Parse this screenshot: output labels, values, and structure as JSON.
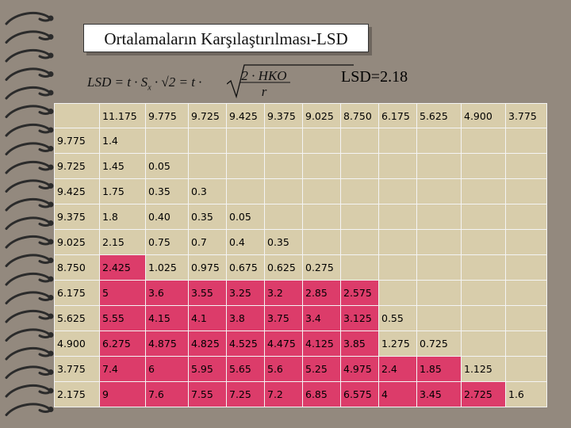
{
  "title": "Ortalamaların Karşılaştırılması-LSD",
  "lsd_label": "LSD=2.18",
  "formula": {
    "lhs": "LSD = t · S",
    "sub": "x",
    "lhs2": "· √2 = t ·",
    "numerator": "2 · HKO",
    "denominator": "r"
  },
  "table": {
    "column_headers": [
      "11.175",
      "9.775",
      "9.725",
      "9.425",
      "9.375",
      "9.025",
      "8.750",
      "6.175",
      "5.625",
      "4.900",
      "3.775"
    ],
    "rows": [
      {
        "label": "9.775",
        "values": [
          "1.4"
        ]
      },
      {
        "label": "9.725",
        "values": [
          "1.45",
          "0.05"
        ]
      },
      {
        "label": "9.425",
        "values": [
          "1.75",
          "0.35",
          "0.3"
        ]
      },
      {
        "label": "9.375",
        "values": [
          "1.8",
          "0.40",
          "0.35",
          "0.05"
        ]
      },
      {
        "label": "9.025",
        "values": [
          "2.15",
          "0.75",
          "0.7",
          "0.4",
          "0.35"
        ]
      },
      {
        "label": "8.750",
        "values": [
          "2.425",
          "1.025",
          "0.975",
          "0.675",
          "0.625",
          "0.275"
        ]
      },
      {
        "label": "6.175",
        "values": [
          "5",
          "3.6",
          "3.55",
          "3.25",
          "3.2",
          "2.85",
          "2.575"
        ]
      },
      {
        "label": "5.625",
        "values": [
          "5.55",
          "4.15",
          "4.1",
          "3.8",
          "3.75",
          "3.4",
          "3.125",
          "0.55"
        ]
      },
      {
        "label": "4.900",
        "values": [
          "6.275",
          "4.875",
          "4.825",
          "4.525",
          "4.475",
          "4.125",
          "3.85",
          "1.275",
          "0.725"
        ]
      },
      {
        "label": "3.775",
        "values": [
          "7.4",
          "6",
          "5.95",
          "5.65",
          "5.6",
          "5.25",
          "4.975",
          "2.4",
          "1.85",
          "1.125"
        ]
      },
      {
        "label": "2.175",
        "values": [
          "9",
          "7.6",
          "7.55",
          "7.25",
          "7.2",
          "6.85",
          "6.575",
          "4",
          "3.45",
          "2.725",
          "1.6"
        ]
      }
    ],
    "highlight_color": "#dc3c6a",
    "cell_color": "#d8cdab"
  },
  "colors": {
    "background": "#93897e",
    "highlight": "#dc3c6a"
  }
}
